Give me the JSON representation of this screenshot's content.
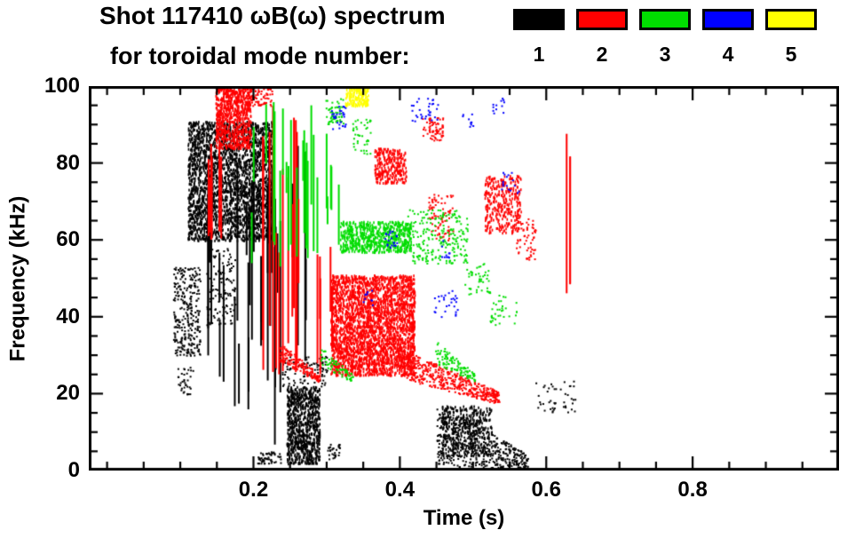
{
  "chart_data": {
    "type": "scatter",
    "title": "Shot 117410 ωB(ω) spectrum",
    "subtitle": "for toroidal mode number:",
    "xlabel": "Time (s)",
    "ylabel": "Frequency (kHz)",
    "xlim": [
      -0.025,
      1.0
    ],
    "ylim": [
      0,
      100
    ],
    "xticks": [
      0.2,
      0.4,
      0.6,
      0.8
    ],
    "xtick_labels": [
      "0.2",
      "0.4",
      "0.6",
      "0.8"
    ],
    "yticks": [
      0,
      20,
      40,
      60,
      80,
      100
    ],
    "ytick_labels": [
      "0",
      "20",
      "40",
      "60",
      "80",
      "100"
    ],
    "x_minor_step": 0.05,
    "y_minor_step": 5,
    "grid": false,
    "legend_position": "top-right",
    "series": [
      {
        "name": "1",
        "color": "#000000",
        "clusters": [
          {
            "kind": "box",
            "t": [
              0.09,
              0.127
            ],
            "f": [
              30,
              53
            ],
            "n": 300
          },
          {
            "kind": "box",
            "t": [
              0.095,
              0.118
            ],
            "f": [
              20,
              27
            ],
            "n": 35
          },
          {
            "kind": "blob",
            "t": [
              0.11,
              0.225
            ],
            "f": [
              60,
              91
            ],
            "n": 2600
          },
          {
            "kind": "vlines",
            "t": [
              0.133,
              0.225
            ],
            "f": [
              15,
              88
            ],
            "n": 24,
            "seglen": [
              8,
              45
            ]
          },
          {
            "kind": "vlines",
            "t": [
              0.225,
              0.272
            ],
            "f": [
              5,
              85
            ],
            "n": 10,
            "seglen": [
              12,
              60
            ]
          },
          {
            "kind": "box",
            "t": [
              0.205,
              0.237
            ],
            "f": [
              2,
              5
            ],
            "n": 55
          },
          {
            "kind": "blob",
            "t": [
              0.245,
              0.29
            ],
            "f": [
              2,
              22
            ],
            "n": 850
          },
          {
            "kind": "box",
            "t": [
              0.238,
              0.3
            ],
            "f": [
              22,
              30
            ],
            "n": 90
          },
          {
            "kind": "box",
            "t": [
              0.3,
              0.318
            ],
            "f": [
              3,
              7
            ],
            "n": 30
          },
          {
            "kind": "chirp",
            "t": [
              0.45,
              0.575
            ],
            "f": [
              10,
              1
            ],
            "width": 16,
            "n": 520
          },
          {
            "kind": "blob",
            "t": [
              0.455,
              0.525
            ],
            "f": [
              4,
              17
            ],
            "n": 420
          },
          {
            "kind": "box",
            "t": [
              0.585,
              0.64
            ],
            "f": [
              15,
              24
            ],
            "n": 45
          },
          {
            "kind": "box",
            "t": [
              0.135,
              0.175
            ],
            "f": [
              38,
              58
            ],
            "n": 130
          }
        ]
      },
      {
        "name": "2",
        "color": "#ff0000",
        "clusters": [
          {
            "kind": "blob",
            "t": [
              0.148,
              0.196
            ],
            "f": [
              84,
              100
            ],
            "n": 800
          },
          {
            "kind": "vlines",
            "t": [
              0.128,
              0.155
            ],
            "f": [
              60,
              85
            ],
            "n": 7,
            "seglen": [
              6,
              25
            ]
          },
          {
            "kind": "vlines",
            "t": [
              0.21,
              0.265
            ],
            "f": [
              25,
              95
            ],
            "n": 13,
            "seglen": [
              15,
              70
            ]
          },
          {
            "kind": "chirp",
            "t": [
              0.235,
              0.29
            ],
            "f": [
              31,
              24
            ],
            "width": 5,
            "n": 160
          },
          {
            "kind": "vlines",
            "t": [
              0.285,
              0.312
            ],
            "f": [
              25,
              60
            ],
            "n": 5,
            "seglen": [
              10,
              30
            ]
          },
          {
            "kind": "blob",
            "t": [
              0.305,
              0.42
            ],
            "f": [
              25,
              51
            ],
            "n": 2900
          },
          {
            "kind": "chirp",
            "t": [
              0.4,
              0.535
            ],
            "f": [
              28,
              19
            ],
            "width": 8,
            "n": 480
          },
          {
            "kind": "blob",
            "t": [
              0.515,
              0.565
            ],
            "f": [
              62,
              77
            ],
            "n": 330
          },
          {
            "kind": "vlines",
            "t": [
              0.625,
              0.638
            ],
            "f": [
              46,
              88
            ],
            "n": 3,
            "seglen": [
              28,
              42
            ]
          },
          {
            "kind": "blob",
            "t": [
              0.365,
              0.408
            ],
            "f": [
              75,
              84
            ],
            "n": 280
          },
          {
            "kind": "box",
            "t": [
              0.43,
              0.458
            ],
            "f": [
              86,
              92
            ],
            "n": 70
          },
          {
            "kind": "box",
            "t": [
              0.438,
              0.472
            ],
            "f": [
              60,
              72
            ],
            "n": 80
          },
          {
            "kind": "box",
            "t": [
              0.558,
              0.585
            ],
            "f": [
              55,
              66
            ],
            "n": 60
          },
          {
            "kind": "box",
            "t": [
              0.19,
              0.225
            ],
            "f": [
              95,
              100
            ],
            "n": 90
          }
        ]
      },
      {
        "name": "3",
        "color": "#00dd00",
        "clusters": [
          {
            "kind": "vlines",
            "t": [
              0.195,
              0.285
            ],
            "f": [
              53,
              99
            ],
            "n": 18,
            "seglen": [
              8,
              38
            ]
          },
          {
            "kind": "blob",
            "t": [
              0.318,
              0.415
            ],
            "f": [
              57,
              65
            ],
            "n": 650
          },
          {
            "kind": "box",
            "t": [
              0.41,
              0.492
            ],
            "f": [
              54,
              68
            ],
            "n": 220
          },
          {
            "kind": "chirp",
            "t": [
              0.448,
              0.503
            ],
            "f": [
              31,
              24
            ],
            "width": 6,
            "n": 110
          },
          {
            "kind": "box",
            "t": [
              0.298,
              0.322
            ],
            "f": [
              90,
              97
            ],
            "n": 55
          },
          {
            "kind": "box",
            "t": [
              0.488,
              0.523
            ],
            "f": [
              46,
              54
            ],
            "n": 45
          },
          {
            "kind": "vlines",
            "t": [
              0.285,
              0.318
            ],
            "f": [
              55,
              90
            ],
            "n": 6,
            "seglen": [
              6,
              22
            ]
          },
          {
            "kind": "chirp",
            "t": [
              0.29,
              0.335
            ],
            "f": [
              30,
              24
            ],
            "width": 5,
            "n": 70
          },
          {
            "kind": "box",
            "t": [
              0.335,
              0.36
            ],
            "f": [
              82,
              92
            ],
            "n": 40
          },
          {
            "kind": "box",
            "t": [
              0.52,
              0.56
            ],
            "f": [
              38,
              46
            ],
            "n": 35
          }
        ]
      },
      {
        "name": "4",
        "color": "#0000ff",
        "clusters": [
          {
            "kind": "box",
            "t": [
              0.305,
              0.325
            ],
            "f": [
              89,
              95
            ],
            "n": 28
          },
          {
            "kind": "box",
            "t": [
              0.415,
              0.452
            ],
            "f": [
              91,
              97
            ],
            "n": 32
          },
          {
            "kind": "box",
            "t": [
              0.525,
              0.542
            ],
            "f": [
              93,
              97
            ],
            "n": 12
          },
          {
            "kind": "box",
            "t": [
              0.378,
              0.396
            ],
            "f": [
              58,
              63
            ],
            "n": 20
          },
          {
            "kind": "box",
            "t": [
              0.445,
              0.478
            ],
            "f": [
              40,
              47
            ],
            "n": 28
          },
          {
            "kind": "box",
            "t": [
              0.538,
              0.562
            ],
            "f": [
              72,
              78
            ],
            "n": 16
          },
          {
            "kind": "box",
            "t": [
              0.348,
              0.362
            ],
            "f": [
              43,
              47
            ],
            "n": 10
          },
          {
            "kind": "box",
            "t": [
              0.483,
              0.5
            ],
            "f": [
              89,
              93
            ],
            "n": 10
          },
          {
            "kind": "box",
            "t": [
              0.455,
              0.468
            ],
            "f": [
              55,
              60
            ],
            "n": 10
          }
        ]
      },
      {
        "name": "5",
        "color": "#ffff00",
        "clusters": [
          {
            "kind": "blob",
            "t": [
              0.325,
              0.357
            ],
            "f": [
              95,
              100
            ],
            "n": 170
          }
        ]
      }
    ]
  }
}
